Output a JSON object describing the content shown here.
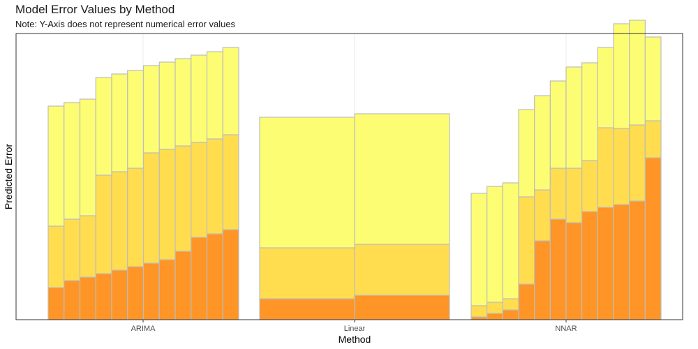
{
  "chart_data": {
    "type": "bar",
    "stacked": true,
    "title": "Model Error Values by Method",
    "subtitle": "Note: Y-Axis does not represent numerical error values",
    "xlabel": "Method",
    "ylabel": "Predicted Error",
    "categories": [
      "ARIMA",
      "Linear",
      "NNAR"
    ],
    "grid": "vertical gridlines at category centers",
    "y_tick_labels": "none",
    "ylim": [
      0,
      410
    ],
    "colors": {
      "dark": "#FF9526",
      "mid": "#FFDD4F",
      "light": "#FDFD74",
      "outline": "#BDBDBD"
    },
    "groups": [
      {
        "category": "ARIMA",
        "bars": [
          [
            46,
            88,
            172
          ],
          [
            56,
            88,
            167
          ],
          [
            61,
            88,
            167
          ],
          [
            66,
            141,
            140
          ],
          [
            71,
            141,
            140
          ],
          [
            76,
            141,
            140
          ],
          [
            81,
            158,
            125
          ],
          [
            86,
            158,
            125
          ],
          [
            98,
            151,
            125
          ],
          [
            118,
            136,
            125
          ],
          [
            123,
            136,
            125
          ],
          [
            129,
            136,
            125
          ]
        ]
      },
      {
        "category": "Linear",
        "bars": [
          [
            30,
            73,
            187
          ],
          [
            35,
            73,
            187
          ]
        ]
      },
      {
        "category": "NNAR",
        "bars": [
          [
            4,
            16,
            161
          ],
          [
            9,
            16,
            166
          ],
          [
            14,
            16,
            166
          ],
          [
            51,
            125,
            125
          ],
          [
            113,
            73,
            135
          ],
          [
            144,
            73,
            125
          ],
          [
            139,
            78,
            145
          ],
          [
            155,
            73,
            140
          ],
          [
            161,
            114,
            115
          ],
          [
            165,
            109,
            150
          ],
          [
            170,
            109,
            150
          ],
          [
            232,
            53,
            120
          ]
        ]
      }
    ]
  }
}
